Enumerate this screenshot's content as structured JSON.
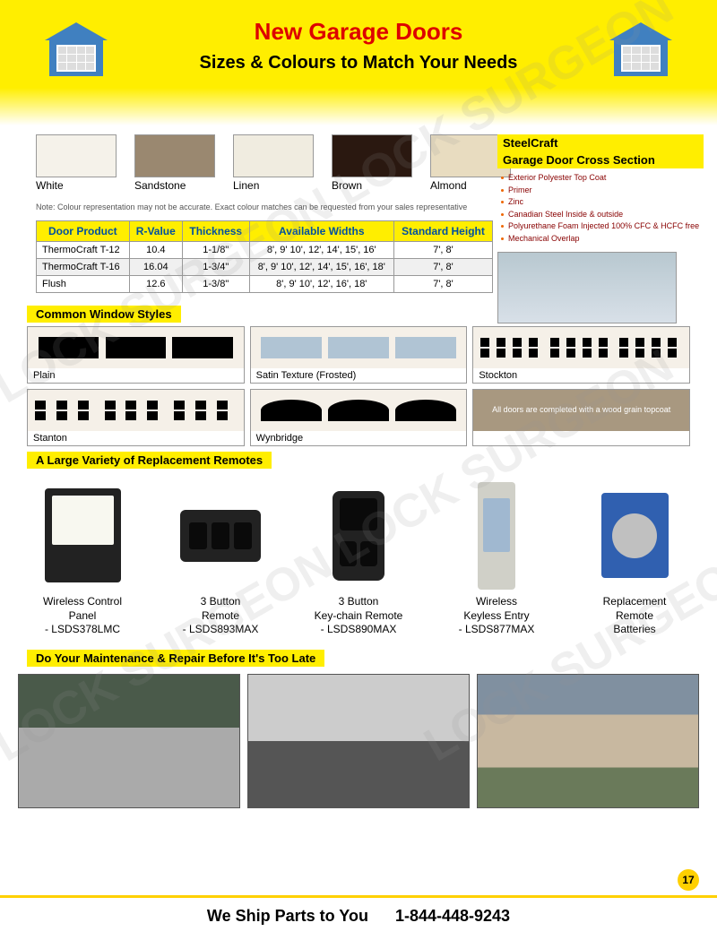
{
  "header": {
    "title": "New Garage Doors",
    "subtitle": "Sizes & Colours  to Match Your Needs"
  },
  "colors": [
    {
      "name": "White",
      "hex": "#f5f2ea"
    },
    {
      "name": "Sandstone",
      "hex": "#9a8870"
    },
    {
      "name": "Linen",
      "hex": "#f0ece0"
    },
    {
      "name": "Brown",
      "hex": "#2a1810"
    },
    {
      "name": "Almond",
      "hex": "#e8dcc0"
    }
  ],
  "color_note": "Note: Colour representation may not be accurate. Exact colour matches can be requested from your sales representative",
  "cross_section": {
    "title1": "SteelCraft",
    "title2": "Garage Door Cross Section",
    "layers": [
      "Exterior Polyester Top Coat",
      "Primer",
      "Zinc",
      "Canadian Steel Inside & outside",
      "Polyurethane Foam Injected 100% CFC & HCFC free",
      "Mechanical Overlap"
    ]
  },
  "spec_table": {
    "headers": [
      "Door Product",
      "R-Value",
      "Thickness",
      "Available Widths",
      "Standard Height"
    ],
    "rows": [
      [
        "ThermoCraft T-12",
        "10.4",
        "1-1/8\"",
        "8', 9' 10', 12', 14', 15', 16'",
        "7',    8'"
      ],
      [
        "ThermoCraft T-16",
        "16.04",
        "1-3/4\"",
        "8', 9' 10', 12', 14', 15', 16', 18'",
        "7',    8'"
      ],
      [
        "Flush",
        "12.6",
        "1-3/8\"",
        "8', 9' 10', 12', 16', 18'",
        "7',    8'"
      ]
    ]
  },
  "windows_title": "Common Window Styles",
  "windows": [
    {
      "name": "Plain"
    },
    {
      "name": "Satin Texture (Frosted)"
    },
    {
      "name": "Stockton"
    },
    {
      "name": "Stanton"
    },
    {
      "name": "Wynbridge"
    },
    {
      "name": "All doors are completed with a wood grain topcoat"
    }
  ],
  "remotes_title": " A Large Variety of Replacement Remotes",
  "remotes": [
    {
      "line1": "Wireless Control",
      "line2": "Panel",
      "line3": "- LSDS378LMC"
    },
    {
      "line1": "3 Button",
      "line2": "Remote",
      "line3": "- LSDS893MAX"
    },
    {
      "line1": "3 Button",
      "line2": "Key-chain Remote",
      "line3": "- LSDS890MAX"
    },
    {
      "line1": "Wireless",
      "line2": "Keyless Entry",
      "line3": "- LSDS877MAX"
    },
    {
      "line1": "Replacement",
      "line2": "Remote",
      "line3": "Batteries"
    }
  ],
  "maintenance_title": "Do Your Maintenance & Repair Before It's Too Late",
  "footer": {
    "ship": "We Ship Parts to You",
    "phone": "1-844-448-9243"
  },
  "page_number": "17",
  "watermark": "LOCK SURGEON",
  "style": {
    "yellow": "#ffee00",
    "red": "#d00000",
    "blue_text": "#0050a0"
  }
}
